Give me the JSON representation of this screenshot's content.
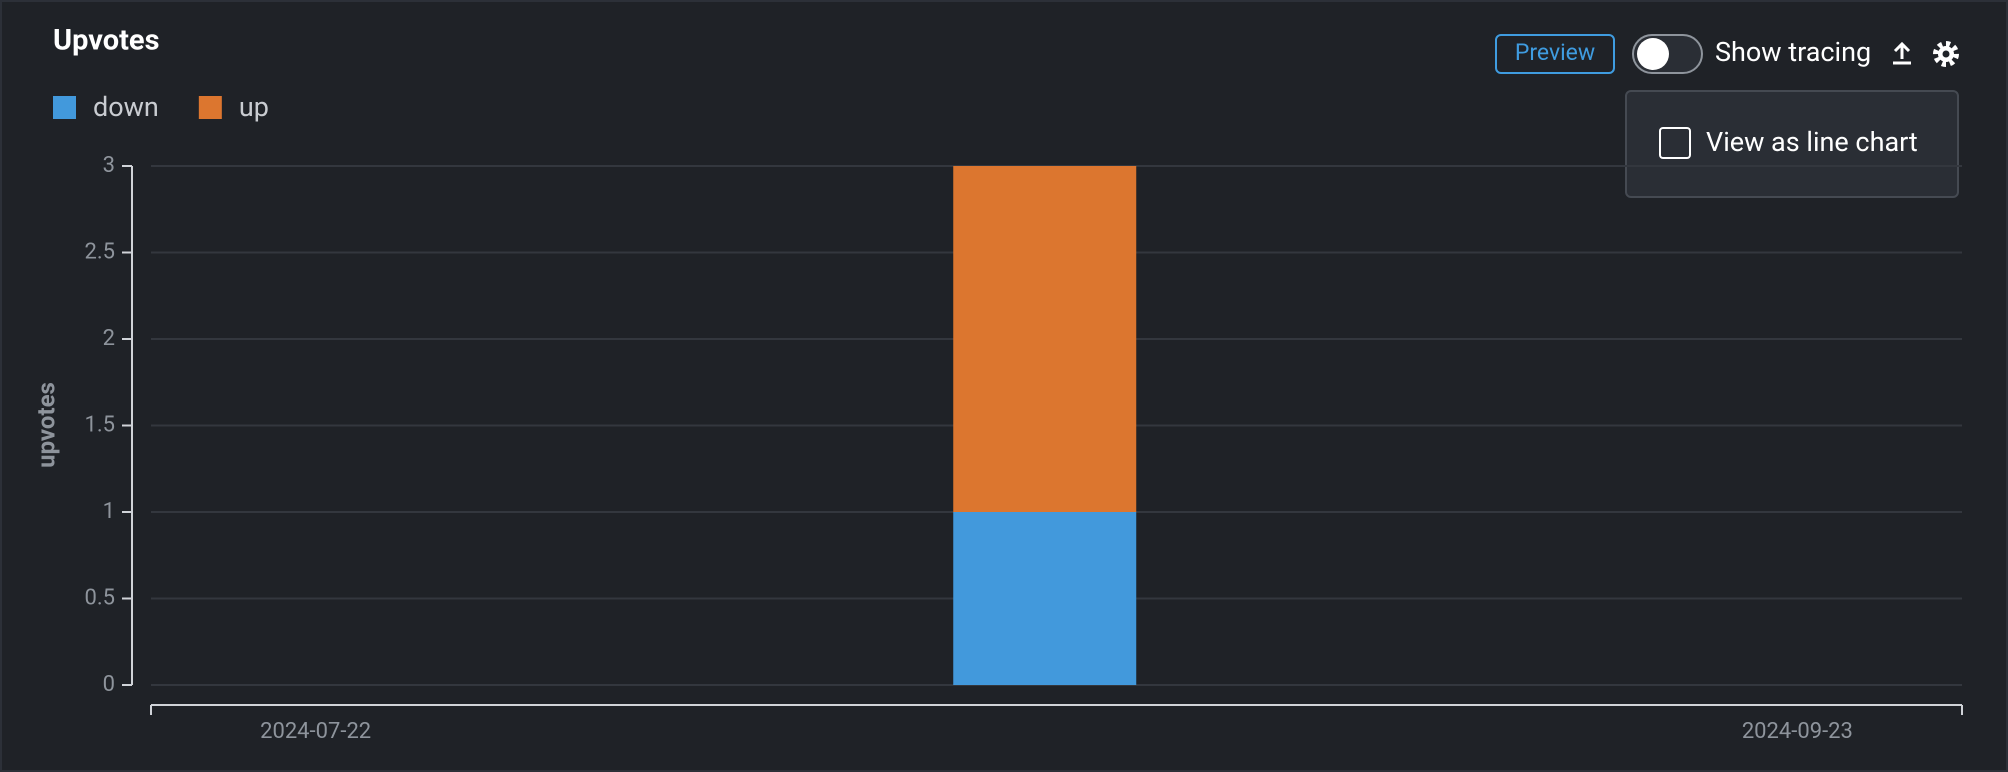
{
  "chart_data": {
    "type": "bar",
    "stacked": true,
    "title": "Upvotes",
    "y_label": "upvotes",
    "x": [
      "2024-08-22"
    ],
    "series": [
      {
        "name": "down",
        "color": "#4299dc",
        "values": [
          1
        ]
      },
      {
        "name": "up",
        "color": "#dc762f",
        "values": [
          2
        ]
      }
    ],
    "xlim": [
      "2024-07-15",
      "2024-09-30"
    ],
    "xticks": [
      "2024-07-22",
      "2024-09-23"
    ],
    "ylim": [
      0,
      3
    ],
    "yticks": [
      0,
      0.5,
      1,
      1.5,
      2,
      2.5,
      3
    ],
    "grid": true
  },
  "toolbar": {
    "preview": "Preview",
    "show_tracing": "Show tracing",
    "menu_item": "View as line chart"
  }
}
